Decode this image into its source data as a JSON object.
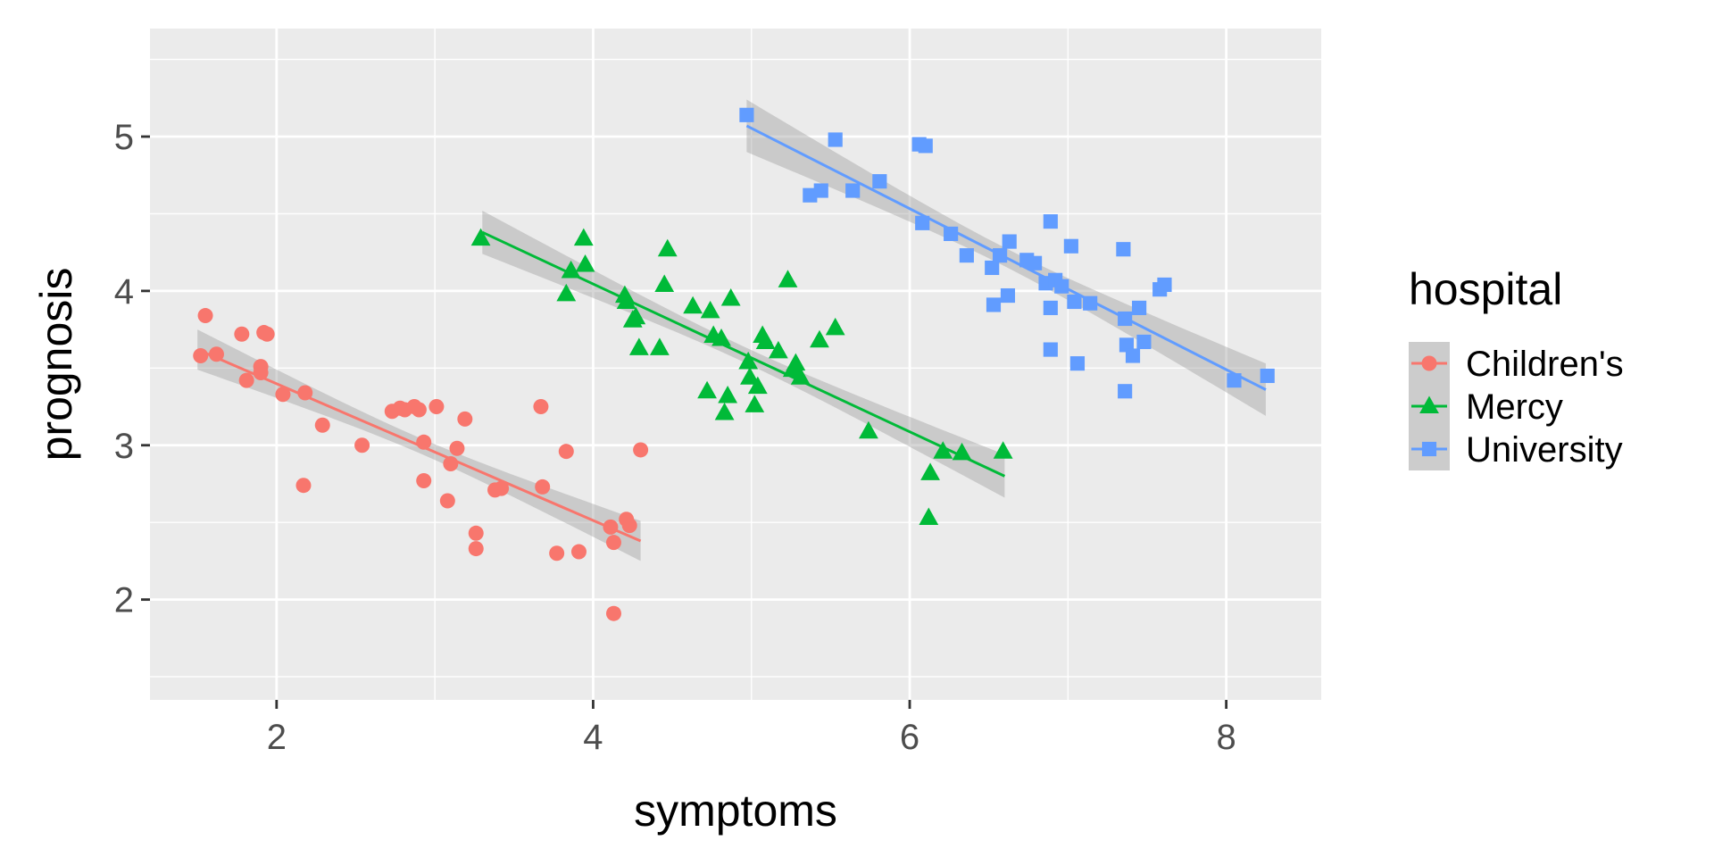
{
  "chart_data": {
    "type": "scatter",
    "xlabel": "symptoms",
    "ylabel": "prognosis",
    "xlim": [
      1.2,
      8.6
    ],
    "ylim": [
      1.35,
      5.7
    ],
    "x_ticks": [
      2,
      4,
      6,
      8
    ],
    "y_ticks": [
      2,
      3,
      4,
      5
    ],
    "x_tick_labels": [
      "2",
      "4",
      "6",
      "8"
    ],
    "y_tick_labels": [
      "2",
      "3",
      "4",
      "5"
    ],
    "grid": true,
    "legend": {
      "title": "hospital",
      "position": "right"
    },
    "series": [
      {
        "name": "Children's",
        "color": "#F8766D",
        "marker": "circle",
        "fit": {
          "x": [
            1.5,
            4.3
          ],
          "y": [
            3.62,
            2.38
          ],
          "ci_halfwidth_ends": 0.13,
          "ci_halfwidth_mid": 0.05
        },
        "points": [
          [
            1.52,
            3.58
          ],
          [
            1.55,
            3.84
          ],
          [
            1.62,
            3.59
          ],
          [
            1.78,
            3.72
          ],
          [
            1.81,
            3.42
          ],
          [
            1.9,
            3.51
          ],
          [
            1.92,
            3.73
          ],
          [
            1.9,
            3.47
          ],
          [
            1.94,
            3.72
          ],
          [
            2.04,
            3.33
          ],
          [
            2.17,
            2.74
          ],
          [
            2.18,
            3.34
          ],
          [
            2.29,
            3.13
          ],
          [
            2.54,
            3.0
          ],
          [
            2.73,
            3.22
          ],
          [
            2.78,
            3.24
          ],
          [
            2.81,
            3.23
          ],
          [
            2.87,
            3.25
          ],
          [
            2.9,
            3.23
          ],
          [
            2.93,
            3.02
          ],
          [
            2.93,
            2.77
          ],
          [
            3.01,
            3.25
          ],
          [
            3.08,
            2.64
          ],
          [
            3.1,
            2.88
          ],
          [
            3.14,
            2.98
          ],
          [
            3.19,
            3.17
          ],
          [
            3.26,
            2.43
          ],
          [
            3.26,
            2.33
          ],
          [
            3.38,
            2.71
          ],
          [
            3.42,
            2.72
          ],
          [
            3.67,
            3.25
          ],
          [
            3.68,
            2.73
          ],
          [
            3.77,
            2.3
          ],
          [
            3.83,
            2.96
          ],
          [
            3.91,
            2.31
          ],
          [
            4.11,
            2.47
          ],
          [
            4.13,
            1.91
          ],
          [
            4.13,
            2.37
          ],
          [
            4.21,
            2.52
          ],
          [
            4.23,
            2.48
          ],
          [
            4.3,
            2.97
          ]
        ]
      },
      {
        "name": "Mercy",
        "color": "#00BA38",
        "marker": "triangle",
        "fit": {
          "x": [
            3.3,
            6.6
          ],
          "y": [
            4.38,
            2.8
          ],
          "ci_halfwidth_ends": 0.14,
          "ci_halfwidth_mid": 0.05
        },
        "points": [
          [
            3.29,
            4.34
          ],
          [
            3.83,
            3.98
          ],
          [
            3.86,
            4.13
          ],
          [
            3.94,
            4.34
          ],
          [
            3.95,
            4.17
          ],
          [
            4.2,
            3.97
          ],
          [
            4.21,
            3.93
          ],
          [
            4.25,
            3.81
          ],
          [
            4.27,
            3.83
          ],
          [
            4.29,
            3.63
          ],
          [
            4.42,
            3.63
          ],
          [
            4.45,
            4.04
          ],
          [
            4.47,
            4.27
          ],
          [
            4.63,
            3.9
          ],
          [
            4.72,
            3.35
          ],
          [
            4.74,
            3.87
          ],
          [
            4.76,
            3.71
          ],
          [
            4.81,
            3.69
          ],
          [
            4.83,
            3.21
          ],
          [
            4.85,
            3.32
          ],
          [
            4.87,
            3.95
          ],
          [
            4.98,
            3.54
          ],
          [
            4.99,
            3.44
          ],
          [
            5.02,
            3.26
          ],
          [
            5.04,
            3.38
          ],
          [
            5.07,
            3.71
          ],
          [
            5.09,
            3.67
          ],
          [
            5.17,
            3.61
          ],
          [
            5.23,
            4.07
          ],
          [
            5.26,
            3.49
          ],
          [
            5.28,
            3.53
          ],
          [
            5.31,
            3.44
          ],
          [
            5.43,
            3.68
          ],
          [
            5.53,
            3.76
          ],
          [
            5.74,
            3.09
          ],
          [
            6.12,
            2.53
          ],
          [
            6.13,
            2.82
          ],
          [
            6.21,
            2.96
          ],
          [
            6.33,
            2.95
          ],
          [
            6.59,
            2.96
          ]
        ]
      },
      {
        "name": "University",
        "color": "#619CFF",
        "marker": "square",
        "fit": {
          "x": [
            4.97,
            8.25
          ],
          "y": [
            5.07,
            3.36
          ],
          "ci_halfwidth_ends": 0.17,
          "ci_halfwidth_mid": 0.06
        },
        "points": [
          [
            4.97,
            5.14
          ],
          [
            5.37,
            4.62
          ],
          [
            5.44,
            4.65
          ],
          [
            5.53,
            4.98
          ],
          [
            5.64,
            4.65
          ],
          [
            5.81,
            4.71
          ],
          [
            6.06,
            4.95
          ],
          [
            6.1,
            4.94
          ],
          [
            6.08,
            4.44
          ],
          [
            6.26,
            4.37
          ],
          [
            6.36,
            4.23
          ],
          [
            6.52,
            4.15
          ],
          [
            6.53,
            3.91
          ],
          [
            6.57,
            4.23
          ],
          [
            6.62,
            3.97
          ],
          [
            6.63,
            4.32
          ],
          [
            6.74,
            4.2
          ],
          [
            6.79,
            4.18
          ],
          [
            6.86,
            4.05
          ],
          [
            6.89,
            4.45
          ],
          [
            6.89,
            3.62
          ],
          [
            6.89,
            3.89
          ],
          [
            6.92,
            4.07
          ],
          [
            6.96,
            4.03
          ],
          [
            7.02,
            4.29
          ],
          [
            7.04,
            3.93
          ],
          [
            7.06,
            3.53
          ],
          [
            7.14,
            3.92
          ],
          [
            7.35,
            4.27
          ],
          [
            7.36,
            3.82
          ],
          [
            7.37,
            3.65
          ],
          [
            7.36,
            3.35
          ],
          [
            7.41,
            3.58
          ],
          [
            7.45,
            3.89
          ],
          [
            7.48,
            3.67
          ],
          [
            7.58,
            4.01
          ],
          [
            7.61,
            4.04
          ],
          [
            8.05,
            3.42
          ],
          [
            8.26,
            3.45
          ]
        ]
      }
    ]
  }
}
